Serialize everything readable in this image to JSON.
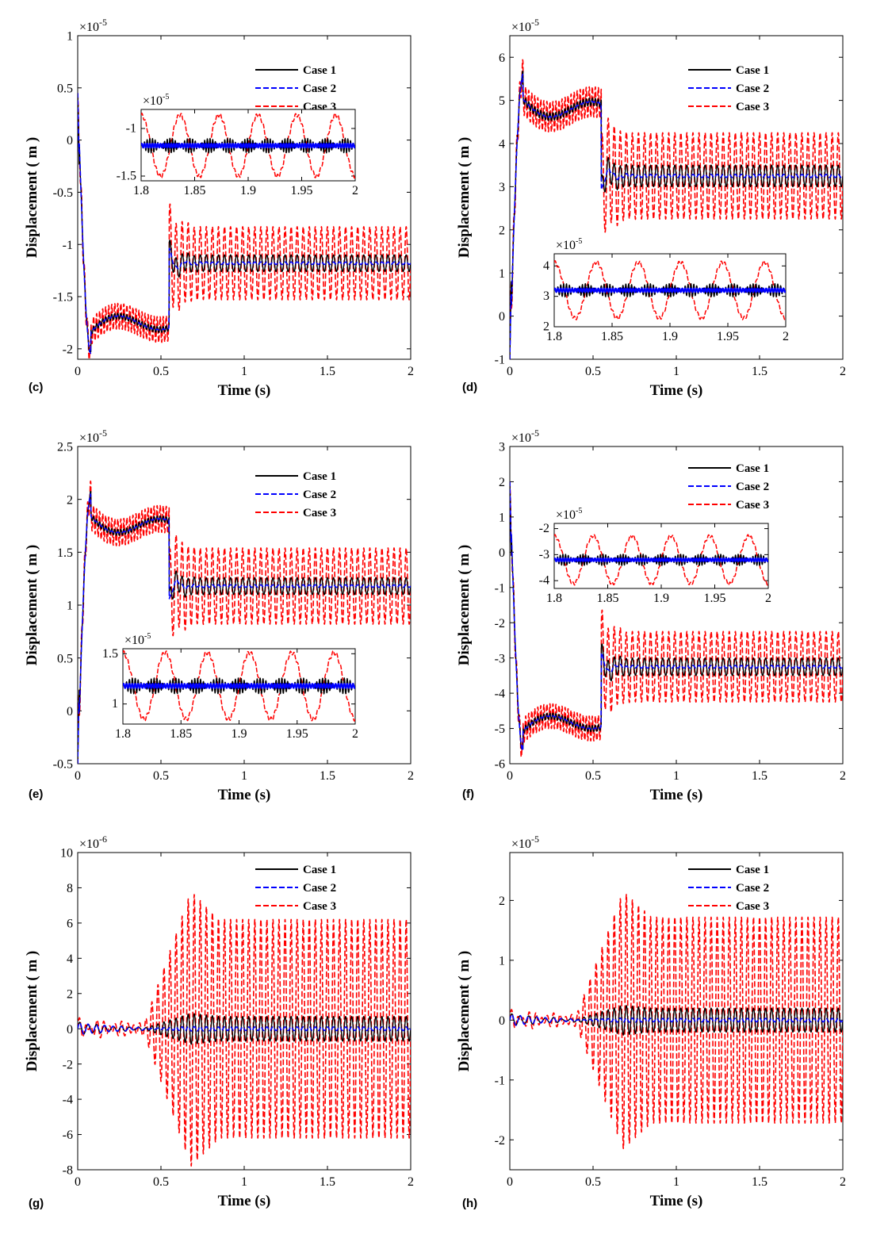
{
  "colors": {
    "case1": "#000000",
    "case2": "#0000ff",
    "case3": "#ff0000"
  },
  "legend": [
    "Case 1",
    "Case 2",
    "Case 3"
  ],
  "chart_data": [
    {
      "id": "c",
      "panel_label": "(c)",
      "type": "line",
      "title": "",
      "xlabel": "Time (s)",
      "ylabel": "Displacement ( m )",
      "xlim": [
        0,
        2
      ],
      "ylim": [
        -2.1,
        1.0
      ],
      "exponent": "-5",
      "xticks": [
        "0",
        "0.5",
        "1",
        "1.5",
        "2"
      ],
      "yticks": [
        "-2",
        "-1.5",
        "-1",
        "-0.5",
        "0",
        "0.5",
        "1"
      ],
      "yticks_values": [
        -2,
        -1.5,
        -1,
        -0.5,
        0,
        0.5,
        1
      ],
      "steady_mean": -1.18,
      "initial": 0.45,
      "min": -2.05,
      "case3_amplitude": 0.35,
      "case1_amplitude": 0.08,
      "legend_position": "top-right",
      "inset": {
        "xlim": [
          1.8,
          2.0
        ],
        "ylim": [
          -1.55,
          -0.8
        ],
        "exponent": "-5",
        "xticks": [
          "1.8",
          "1.85",
          "1.9",
          "1.95",
          "2"
        ],
        "yticks": [
          "-1",
          "-1.5"
        ],
        "yticks_values": [
          -1,
          -1.5
        ],
        "mean": -1.18,
        "case3_amplitude": 0.35,
        "cycles": 5.5
      },
      "series": [
        {
          "name": "Case 1"
        },
        {
          "name": "Case 2"
        },
        {
          "name": "Case 3"
        }
      ]
    },
    {
      "id": "d",
      "panel_label": "(d)",
      "type": "line",
      "title": "",
      "xlabel": "Time (s)",
      "ylabel": "Displacement ( m )",
      "xlim": [
        0,
        2
      ],
      "ylim": [
        -1,
        6.5
      ],
      "exponent": "-5",
      "xticks": [
        "0",
        "0.5",
        "1",
        "1.5",
        "2"
      ],
      "yticks": [
        "-1",
        "0",
        "1",
        "2",
        "3",
        "4",
        "5",
        "6"
      ],
      "yticks_values": [
        -1,
        0,
        1,
        2,
        3,
        4,
        5,
        6
      ],
      "steady_mean": 3.25,
      "initial": -1.0,
      "peak": 5.6,
      "case3_amplitude": 1.0,
      "case1_amplitude": 0.25,
      "legend_position": "top-right",
      "inset": {
        "xlim": [
          1.8,
          2.0
        ],
        "ylim": [
          2.0,
          4.4
        ],
        "exponent": "-5",
        "xticks": [
          "1.8",
          "1.85",
          "1.9",
          "1.95",
          "2"
        ],
        "yticks": [
          "4",
          "3",
          "2"
        ],
        "yticks_values": [
          4,
          3,
          2
        ],
        "mean": 3.2,
        "case3_amplitude": 1.0,
        "cycles": 5.5
      },
      "series": [
        {
          "name": "Case 1"
        },
        {
          "name": "Case 2"
        },
        {
          "name": "Case 3"
        }
      ]
    },
    {
      "id": "e",
      "panel_label": "(e)",
      "type": "line",
      "title": "",
      "xlabel": "Time (s)",
      "ylabel": "Displacement ( m )",
      "xlim": [
        0,
        2
      ],
      "ylim": [
        -0.5,
        2.5
      ],
      "exponent": "-5",
      "xticks": [
        "0",
        "0.5",
        "1",
        "1.5",
        "2"
      ],
      "yticks": [
        "-0.5",
        "0",
        "0.5",
        "1",
        "1.5",
        "2",
        "2.5"
      ],
      "yticks_values": [
        -0.5,
        0,
        0.5,
        1,
        1.5,
        2,
        2.5
      ],
      "steady_mean": 1.18,
      "initial": -0.5,
      "peak": 2.05,
      "case3_amplitude": 0.36,
      "case1_amplitude": 0.08,
      "legend_position": "top-right",
      "inset": {
        "xlim": [
          1.8,
          2.0
        ],
        "ylim": [
          0.8,
          1.55
        ],
        "exponent": "-5",
        "xticks": [
          "1.8",
          "1.85",
          "1.9",
          "1.95",
          "2"
        ],
        "yticks": [
          "1.5",
          "1"
        ],
        "yticks_values": [
          1.5,
          1
        ],
        "mean": 1.18,
        "case3_amplitude": 0.36,
        "cycles": 5.5
      },
      "series": [
        {
          "name": "Case 1"
        },
        {
          "name": "Case 2"
        },
        {
          "name": "Case 3"
        }
      ]
    },
    {
      "id": "f",
      "panel_label": "(f)",
      "type": "line",
      "title": "",
      "xlabel": "Time (s)",
      "ylabel": "Displacement ( m )",
      "xlim": [
        0,
        2
      ],
      "ylim": [
        -6,
        3
      ],
      "exponent": "-5",
      "xticks": [
        "0",
        "0.5",
        "1",
        "1.5",
        "2"
      ],
      "yticks": [
        "-6",
        "-5",
        "-4",
        "-3",
        "-2",
        "-1",
        "0",
        "1",
        "2",
        "3"
      ],
      "yticks_values": [
        -6,
        -5,
        -4,
        -3,
        -2,
        -1,
        0,
        1,
        2,
        3
      ],
      "steady_mean": -3.25,
      "initial": 2.0,
      "min": -5.65,
      "case3_amplitude": 1.0,
      "case1_amplitude": 0.25,
      "legend_position": "top-right",
      "inset": {
        "xlim": [
          1.8,
          2.0
        ],
        "ylim": [
          -4.3,
          -1.8
        ],
        "exponent": "-5",
        "xticks": [
          "1.8",
          "1.85",
          "1.9",
          "1.95",
          "2"
        ],
        "yticks": [
          "-2",
          "-3",
          "-4"
        ],
        "yticks_values": [
          -2,
          -3,
          -4
        ],
        "mean": -3.2,
        "case3_amplitude": 1.0,
        "cycles": 5.5
      },
      "series": [
        {
          "name": "Case 1"
        },
        {
          "name": "Case 2"
        },
        {
          "name": "Case 3"
        }
      ]
    },
    {
      "id": "g",
      "panel_label": "(g)",
      "type": "line",
      "title": "",
      "xlabel": "Time (s)",
      "ylabel": "Displacement ( m )",
      "xlim": [
        0,
        2
      ],
      "ylim": [
        -8,
        10
      ],
      "exponent": "-6",
      "xticks": [
        "0",
        "0.5",
        "1",
        "1.5",
        "2"
      ],
      "yticks": [
        "-8",
        "-6",
        "-4",
        "-2",
        "0",
        "2",
        "4",
        "6",
        "8",
        "10"
      ],
      "yticks_values": [
        -8,
        -6,
        -4,
        -2,
        0,
        2,
        4,
        6,
        8,
        10
      ],
      "steady_mean": 0,
      "case3_amplitude": 6.2,
      "case3_peak": 7.8,
      "case1_amplitude": 0.7,
      "legend_position": "top-right",
      "series": [
        {
          "name": "Case 1"
        },
        {
          "name": "Case 2"
        },
        {
          "name": "Case 3"
        }
      ]
    },
    {
      "id": "h",
      "panel_label": "(h)",
      "type": "line",
      "title": "",
      "xlabel": "Time (s)",
      "ylabel": "Displacement ( m )",
      "xlim": [
        0,
        2
      ],
      "ylim": [
        -2.5,
        2.8
      ],
      "exponent": "-5",
      "xticks": [
        "0",
        "0.5",
        "1",
        "1.5",
        "2"
      ],
      "yticks": [
        "-2",
        "-1",
        "0",
        "1",
        "2"
      ],
      "yticks_values": [
        -2,
        -1,
        0,
        1,
        2
      ],
      "steady_mean": 0,
      "case3_amplitude": 1.72,
      "case3_peak": 2.15,
      "case1_amplitude": 0.2,
      "legend_position": "top-right",
      "series": [
        {
          "name": "Case 1"
        },
        {
          "name": "Case 2"
        },
        {
          "name": "Case 3"
        }
      ]
    }
  ]
}
